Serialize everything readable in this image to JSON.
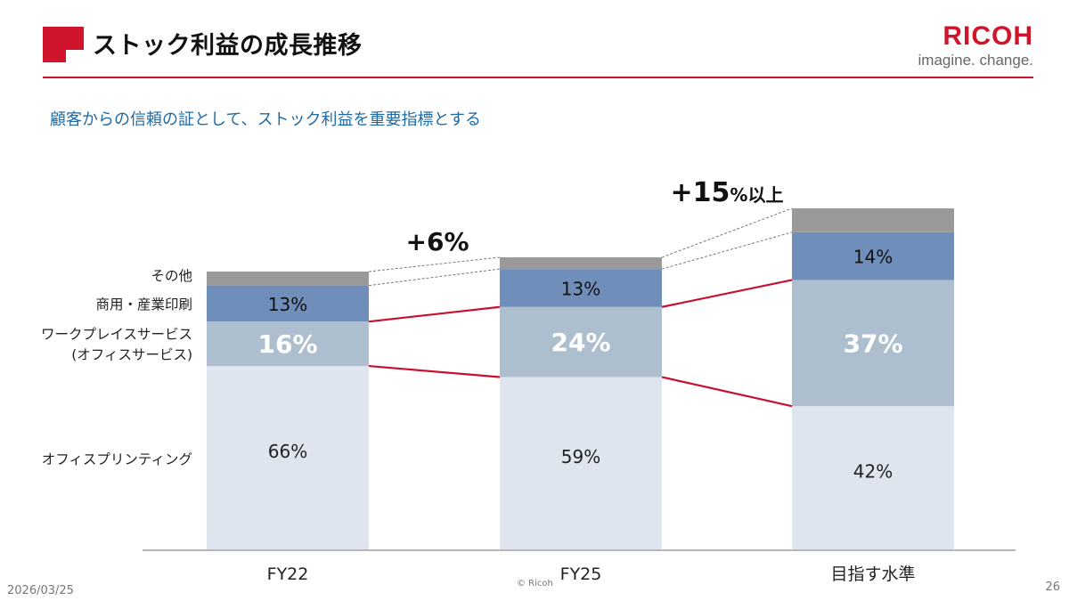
{
  "header": {
    "title": "ストック利益の成長推移",
    "logo_word": "RICOH",
    "logo_tagline": "imagine. change.",
    "subtitle": "顧客からの信頼の証として、ストック利益を重要指標とする"
  },
  "chart_data": {
    "type": "bar",
    "stacked": true,
    "title": "",
    "xlabel": "",
    "ylabel": "",
    "categories": [
      "FY22",
      "FY25",
      "目指す水準"
    ],
    "series": [
      {
        "name": "オフィスプリンティング",
        "color": "#dfe5ef",
        "values": [
          66,
          59,
          42
        ],
        "labels": [
          "66%",
          "59%",
          "42%"
        ]
      },
      {
        "name": "ワークプレイスサービス (オフィスサービス)",
        "legend_lines": [
          "ワークプレイスサービス",
          "(オフィスサービス)"
        ],
        "color": "#adbfcf",
        "values": [
          16,
          24,
          37
        ],
        "labels": [
          "16%",
          "24%",
          "37%"
        ]
      },
      {
        "name": "商用・産業印刷",
        "color": "#6f8fba",
        "values": [
          13,
          13,
          14
        ],
        "labels": [
          "13%",
          "13%",
          "14%"
        ]
      },
      {
        "name": "その他",
        "color": "#999999",
        "values": [
          5,
          4,
          7
        ],
        "labels": [
          "",
          "",
          ""
        ]
      }
    ],
    "bar_totals_index": [
      100,
      106,
      121
    ],
    "annotations": [
      {
        "between": [
          0,
          1
        ],
        "text": "+6%"
      },
      {
        "between": [
          1,
          2
        ],
        "text_big": "+15",
        "text_small": "%以上"
      }
    ],
    "connector_color": "#c8102e",
    "legend_placement": "left"
  },
  "footer": {
    "date": "2026/03/25",
    "copyright": "© Ricoh",
    "page": "26"
  }
}
